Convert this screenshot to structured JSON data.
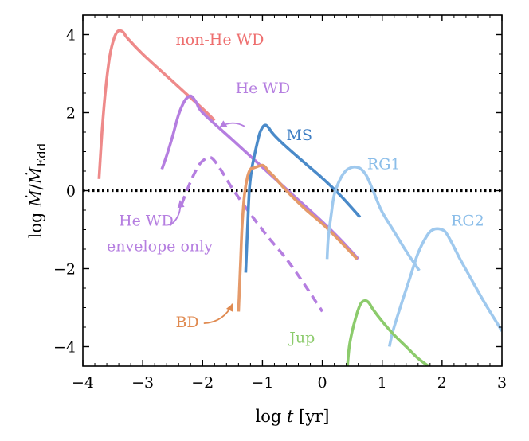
{
  "chart_data": {
    "type": "line",
    "xlabel_prefix": "log ",
    "xlabel_var": "t",
    "xlabel_unit": " [yr]",
    "ylabel": "log Ṁ/Ṁ_Edd",
    "ylabel_prefix": "log ",
    "ylabel_sub": "Edd",
    "xlim": [
      -4,
      3
    ],
    "ylim": [
      -4.5,
      4.5
    ],
    "xticks": [
      -4,
      -3,
      -2,
      -1,
      0,
      1,
      2,
      3
    ],
    "yticks": [
      -4,
      -2,
      0,
      2,
      4
    ],
    "tick_labels_x": [
      "−4",
      "−3",
      "−2",
      "−1",
      "0",
      "1",
      "2",
      "3"
    ],
    "tick_labels_y": [
      "−4",
      "−2",
      "0",
      "2",
      "4"
    ],
    "reference_line": {
      "y": 0,
      "style": "dotted",
      "color": "#000000"
    },
    "series": [
      {
        "name": "non-He WD",
        "color": "#ee8a8a",
        "style": "solid",
        "x": [
          -3.73,
          -3.68,
          -3.62,
          -3.55,
          -3.48,
          -3.42,
          -3.37,
          -3.32,
          -3.25,
          -3.0,
          -2.5,
          -2.0,
          -1.8
        ],
        "y": [
          0.3,
          1.5,
          2.6,
          3.45,
          3.9,
          4.08,
          4.1,
          4.05,
          3.9,
          3.5,
          2.8,
          2.1,
          1.8
        ]
      },
      {
        "name": "He WD",
        "color": "#b57ee0",
        "style": "solid",
        "x": [
          -2.68,
          -2.6,
          -2.5,
          -2.4,
          -2.3,
          -2.22,
          -2.17,
          -2.1,
          -2.0,
          -1.5,
          -1.0,
          -0.5,
          0.0,
          0.3,
          0.6
        ],
        "y": [
          0.55,
          0.9,
          1.4,
          1.95,
          2.3,
          2.42,
          2.4,
          2.25,
          2.0,
          1.3,
          0.6,
          -0.1,
          -0.8,
          -1.25,
          -1.75
        ]
      },
      {
        "name": "He WD envelope only",
        "color": "#b57ee0",
        "style": "dashed",
        "x": [
          -2.35,
          -2.25,
          -2.15,
          -2.05,
          -1.95,
          -1.88,
          -1.82,
          -1.7,
          -1.5,
          -1.2,
          -0.9,
          -0.6,
          -0.3,
          0.0
        ],
        "y": [
          -0.35,
          0.05,
          0.4,
          0.68,
          0.82,
          0.85,
          0.8,
          0.55,
          0.05,
          -0.6,
          -1.2,
          -1.75,
          -2.4,
          -3.1
        ]
      },
      {
        "name": "MS",
        "color": "#4a8ac9",
        "style": "solid",
        "x": [
          -1.28,
          -1.25,
          -1.22,
          -1.18,
          -1.12,
          -1.05,
          -1.0,
          -0.95,
          -0.9,
          -0.82,
          -0.6,
          -0.3,
          0.0,
          0.3,
          0.63
        ],
        "y": [
          -2.1,
          -1.0,
          0.0,
          0.55,
          1.0,
          1.45,
          1.62,
          1.68,
          1.62,
          1.45,
          1.12,
          0.72,
          0.32,
          -0.12,
          -0.68
        ]
      },
      {
        "name": "BD",
        "color": "#e59a6a",
        "style": "solid",
        "x": [
          -1.4,
          -1.37,
          -1.34,
          -1.3,
          -1.25,
          -1.2,
          -1.15,
          -1.08,
          -1.0,
          -0.95,
          -0.9,
          -0.8,
          -0.6,
          -0.3,
          0.0,
          0.3,
          0.58
        ],
        "y": [
          -3.1,
          -2.0,
          -0.9,
          -0.1,
          0.35,
          0.55,
          0.58,
          0.62,
          0.65,
          0.6,
          0.5,
          0.35,
          0.0,
          -0.45,
          -0.85,
          -1.3,
          -1.75
        ]
      },
      {
        "name": "RG1",
        "color": "#9fc9ee",
        "style": "solid",
        "x": [
          0.08,
          0.1,
          0.15,
          0.2,
          0.3,
          0.4,
          0.5,
          0.58,
          0.65,
          0.75,
          0.9,
          1.0,
          1.2,
          1.4,
          1.62
        ],
        "y": [
          -1.75,
          -1.2,
          -0.6,
          -0.1,
          0.3,
          0.52,
          0.6,
          0.6,
          0.55,
          0.35,
          -0.2,
          -0.55,
          -1.05,
          -1.55,
          -2.05
        ]
      },
      {
        "name": "RG2",
        "color": "#9fc9ee",
        "style": "solid",
        "x": [
          1.12,
          1.18,
          1.3,
          1.45,
          1.6,
          1.75,
          1.85,
          1.95,
          2.05,
          2.15,
          2.3,
          2.5,
          2.7,
          2.9,
          3.0
        ],
        "y": [
          -4.0,
          -3.6,
          -3.0,
          -2.3,
          -1.6,
          -1.15,
          -1.0,
          -0.98,
          -1.05,
          -1.3,
          -1.75,
          -2.3,
          -2.85,
          -3.35,
          -3.6
        ]
      },
      {
        "name": "Jup",
        "color": "#8ccb6c",
        "style": "solid",
        "x": [
          0.42,
          0.45,
          0.5,
          0.55,
          0.6,
          0.65,
          0.72,
          0.78,
          0.85,
          1.0,
          1.2,
          1.4,
          1.6,
          1.82
        ],
        "y": [
          -4.5,
          -4.0,
          -3.6,
          -3.3,
          -3.05,
          -2.88,
          -2.82,
          -2.88,
          -3.05,
          -3.35,
          -3.7,
          -4.0,
          -4.3,
          -4.55
        ]
      }
    ],
    "labels": [
      {
        "text": "non-He WD",
        "color": "#ee6f6f",
        "x": -2.45,
        "y": 3.75
      },
      {
        "text": "He WD",
        "color": "#b57ee0",
        "x": -1.45,
        "y": 2.5
      },
      {
        "text": "MS",
        "color": "#3f7fc4",
        "x": -0.6,
        "y": 1.3
      },
      {
        "text": "RG1",
        "color": "#8abde9",
        "x": 0.75,
        "y": 0.55
      },
      {
        "text": "RG2",
        "color": "#8abde9",
        "x": 2.15,
        "y": -0.9
      },
      {
        "text": "He WD",
        "color": "#b57ee0",
        "x": -3.4,
        "y": -0.9
      },
      {
        "text": "envelope only",
        "color": "#b57ee0",
        "x": -3.6,
        "y": -1.55
      },
      {
        "text": "BD",
        "color": "#e08a50",
        "x": -2.45,
        "y": -3.5
      },
      {
        "text": "Jup",
        "color": "#8ccb6c",
        "x": -0.55,
        "y": -3.9
      }
    ],
    "arrows": [
      {
        "target": "He WD",
        "color": "#b57ee0",
        "from": [
          -1.3,
          1.65
        ],
        "to": [
          -1.72,
          1.62
        ]
      },
      {
        "target": "He WD envelope only",
        "color": "#b57ee0",
        "from": [
          -2.55,
          -0.9
        ],
        "to": [
          -2.38,
          -0.25
        ]
      },
      {
        "target": "BD",
        "color": "#e08a50",
        "from": [
          -1.98,
          -3.4
        ],
        "to": [
          -1.5,
          -2.9
        ]
      }
    ]
  }
}
